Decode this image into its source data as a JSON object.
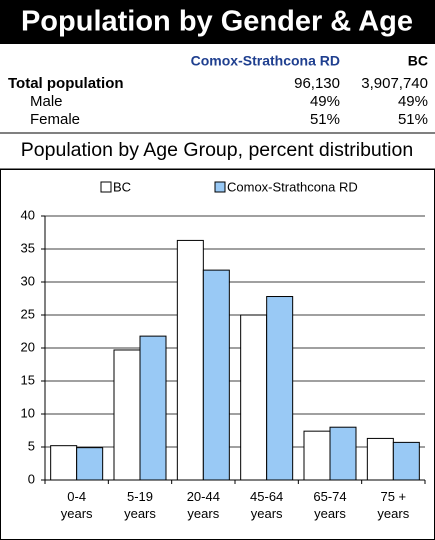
{
  "header": {
    "title": "Population by Gender & Age"
  },
  "table": {
    "columns": [
      "Comox-Strathcona RD",
      "BC"
    ],
    "rows": [
      [
        "Total population",
        "96,130",
        "3,907,740"
      ],
      [
        "Male",
        "49%",
        "49%"
      ],
      [
        "Female",
        "51%",
        "51%"
      ]
    ]
  },
  "chart_data": {
    "type": "bar",
    "title": "Population by Age Group, percent distribution",
    "categories": [
      "0-4 years",
      "5-19 years",
      "20-44 years",
      "45-64 years",
      "65-74 years",
      "75 + years"
    ],
    "series": [
      {
        "name": "BC",
        "color": "#ffffff",
        "values": [
          5.2,
          19.7,
          36.3,
          25,
          7.4,
          6.3
        ]
      },
      {
        "name": "Comox-Strathcona RD",
        "color": "#99c9f5",
        "values": [
          4.9,
          21.8,
          31.8,
          27.8,
          8,
          5.7
        ]
      }
    ],
    "ylim": [
      0,
      40
    ],
    "yticks": [
      0,
      5,
      10,
      15,
      20,
      25,
      30,
      35,
      40
    ],
    "grid": true,
    "legend": "top"
  }
}
